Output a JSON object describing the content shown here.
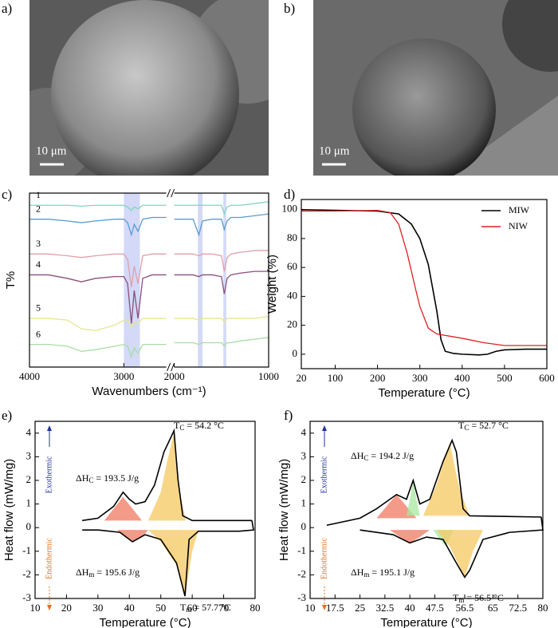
{
  "panels": {
    "a": "a)",
    "b": "b)",
    "c": "c)",
    "d": "d)",
    "e": "e)",
    "f": "f)",
    "scale_a": "10 μm",
    "scale_b": "10 μm"
  },
  "chart_data": [
    {
      "type": "line",
      "xlabel": "Wavenumbers (cm⁻¹)",
      "ylabel": "T%",
      "xlim": [
        4000,
        1000
      ],
      "xbreak": [
        2550,
        2000
      ],
      "xticks": [
        4000,
        3000,
        2000,
        1000
      ],
      "ylim": [
        0,
        100
      ],
      "highlights": [
        [
          3000,
          2830
        ],
        [
          1750,
          1700
        ],
        [
          1480,
          1450
        ]
      ],
      "highlight_color": "#c8d0f5",
      "x": [
        4000,
        3800,
        3600,
        3450,
        3300,
        3100,
        3000,
        2960,
        2920,
        2890,
        2850,
        2800,
        2700,
        2550,
        2000,
        1900,
        1800,
        1740,
        1700,
        1600,
        1500,
        1470,
        1440,
        1400,
        1300,
        1150,
        1000
      ],
      "series": [
        {
          "name": "1",
          "color": "#7fd6c0",
          "values": [
            93,
            93,
            93,
            92.5,
            93,
            93,
            93,
            92,
            90,
            92,
            91,
            93,
            93,
            93,
            93,
            93,
            93,
            93,
            93,
            93,
            93,
            88,
            92,
            93,
            93,
            94,
            95
          ]
        },
        {
          "name": "2",
          "color": "#5b9bd0",
          "values": [
            85,
            85,
            84,
            83,
            84,
            85,
            85,
            83,
            76,
            82,
            78,
            85,
            86,
            86,
            85,
            85,
            85,
            76,
            84,
            85,
            85,
            79,
            84,
            86,
            86,
            87,
            88
          ]
        },
        {
          "name": "3",
          "color": "#e0a0a8",
          "values": [
            65,
            65,
            64,
            63,
            64,
            65,
            65,
            62,
            46,
            58,
            48,
            64,
            65,
            65,
            65,
            65,
            65,
            64,
            65,
            65,
            64,
            55,
            63,
            65,
            66,
            67,
            67
          ]
        },
        {
          "name": "4",
          "color": "#8b4e7a",
          "values": [
            53,
            53,
            51,
            49,
            51,
            52,
            52,
            48,
            25,
            44,
            28,
            51,
            53,
            53,
            53,
            53,
            53,
            52,
            53,
            53,
            52,
            42,
            51,
            53,
            54,
            55,
            55
          ]
        },
        {
          "name": "5",
          "color": "#e6e690",
          "values": [
            28,
            28,
            27,
            22,
            21,
            24,
            27,
            27,
            23,
            26,
            25,
            28,
            28,
            28,
            28,
            28,
            28,
            27,
            28,
            28,
            28,
            26,
            28,
            28,
            28,
            28,
            29
          ]
        },
        {
          "name": "6",
          "color": "#a6dea0",
          "values": [
            13,
            13,
            12,
            9,
            10,
            12,
            13,
            12,
            6,
            11,
            8,
            13,
            13,
            13,
            14,
            14,
            14,
            13,
            14,
            14,
            14,
            12,
            14,
            14,
            15,
            16,
            17
          ]
        }
      ]
    },
    {
      "type": "line",
      "xlabel": "Temperature (°C)",
      "ylabel": "Weight (%)",
      "xlim": [
        20,
        600
      ],
      "xticks": [
        20,
        100,
        200,
        300,
        400,
        500,
        600
      ],
      "ylim": [
        -10,
        107
      ],
      "yticks": [
        0,
        20,
        40,
        60,
        80,
        100
      ],
      "legend": "upper right",
      "series": [
        {
          "name": "MIW",
          "color": "#000000",
          "x": [
            20,
            100,
            200,
            250,
            280,
            300,
            320,
            340,
            350,
            360,
            380,
            400,
            440,
            460,
            480,
            500,
            550,
            600
          ],
          "values": [
            100,
            99.5,
            99,
            97,
            90,
            80,
            62,
            30,
            10,
            2,
            0.5,
            0,
            -0.5,
            0,
            2,
            3,
            3.5,
            3.5
          ]
        },
        {
          "name": "NIW",
          "color": "#e02020",
          "x": [
            20,
            100,
            200,
            230,
            250,
            270,
            290,
            300,
            320,
            340,
            400,
            450,
            500,
            550,
            600
          ],
          "values": [
            99,
            99,
            99.5,
            98,
            90,
            70,
            45,
            33,
            18,
            14,
            11,
            8,
            6,
            6,
            6
          ]
        }
      ]
    },
    {
      "type": "line",
      "xlabel": "Temperature (°C)",
      "ylabel": "Heat flow (mW/mg)",
      "exo": "Exothermic",
      "endo": "Endothermic",
      "xlim": [
        10,
        80
      ],
      "xticks": [
        10,
        20,
        30,
        40,
        50,
        60,
        70,
        80
      ],
      "ylim": [
        -3,
        4.5
      ],
      "yticks": [
        -3,
        -2,
        -1,
        0,
        1,
        2,
        3,
        4
      ],
      "annotations": [
        {
          "text": "T",
          "sub": "C",
          "rest": " = 54.2 °C"
        },
        {
          "text": "ΔH",
          "sub": "C",
          "rest": " = 193.5 J/g"
        },
        {
          "text": "ΔH",
          "sub": "m",
          "rest": " = 195.6 J/g"
        },
        {
          "text": "T",
          "sub": "m",
          "rest": " = 57.7 °C"
        }
      ],
      "series": [
        {
          "color": "#f07860",
          "fill": true,
          "base": 0.3,
          "x": [
            32,
            35,
            38,
            41,
            44
          ],
          "values": [
            0.3,
            0.8,
            1.3,
            0.8,
            0.3
          ]
        },
        {
          "color": "#f5c860",
          "fill": true,
          "base": 0.3,
          "x": [
            46,
            50,
            52,
            54.2,
            56,
            58
          ],
          "values": [
            0.3,
            1.5,
            2.8,
            4.0,
            1.5,
            0.3
          ]
        },
        {
          "color": "#f07860",
          "fill": true,
          "base": -0.1,
          "x": [
            36,
            39,
            41,
            44,
            46
          ],
          "values": [
            -0.1,
            -0.4,
            -0.6,
            -0.4,
            -0.1
          ]
        },
        {
          "color": "#f5c860",
          "fill": true,
          "base": -0.1,
          "x": [
            46,
            50,
            55,
            57.7,
            60,
            62
          ],
          "values": [
            -0.1,
            -0.6,
            -1.6,
            -2.9,
            -1.0,
            -0.1
          ]
        },
        {
          "color": "#000000",
          "x": [
            25,
            30,
            35,
            38,
            40,
            42,
            45,
            48,
            51,
            54.2,
            55.5,
            57,
            60,
            70,
            79
          ],
          "values": [
            0.3,
            0.4,
            0.9,
            1.5,
            1.2,
            1.0,
            1.1,
            1.8,
            3.2,
            4.1,
            2.0,
            0.5,
            0.3,
            0.3,
            0.3
          ]
        },
        {
          "color": "#000000",
          "x": [
            79,
            79.5,
            75,
            62,
            59,
            57.7,
            55,
            50,
            45,
            41,
            37,
            30,
            25
          ],
          "values": [
            0.3,
            -0.1,
            -0.15,
            -0.15,
            -0.5,
            -2.9,
            -1.5,
            -0.5,
            -0.3,
            -0.6,
            -0.2,
            -0.1,
            -0.1
          ]
        }
      ]
    },
    {
      "type": "line",
      "xlabel": "Temperature (°C)",
      "ylabel": "Heat flow (mW/mg)",
      "exo": "Exothermic",
      "endo": "Endothermic",
      "xlim": [
        10,
        80
      ],
      "xticks": [
        10,
        17.5,
        25,
        32.5,
        40,
        47.5,
        56.5,
        65,
        72.5,
        80
      ],
      "ylim": [
        -3,
        4.5
      ],
      "yticks": [
        -3,
        -2,
        -1,
        0,
        1,
        2,
        3,
        4
      ],
      "annotations": [
        {
          "text": "T",
          "sub": "C",
          "rest": " = 52.7 °C"
        },
        {
          "text": "ΔH",
          "sub": "C",
          "rest": " = 194.2 J/g"
        },
        {
          "text": "ΔH",
          "sub": "m",
          "rest": " = 195.1 J/g"
        },
        {
          "text": "T",
          "sub": "m",
          "rest": " = 56.5 °C"
        }
      ],
      "series": [
        {
          "color": "#f07860",
          "fill": true,
          "base": 0.4,
          "x": [
            30,
            33,
            36,
            39,
            42
          ],
          "values": [
            0.4,
            0.9,
            1.4,
            0.9,
            0.4
          ]
        },
        {
          "color": "#a8e8a0",
          "fill": true,
          "base": 0.5,
          "x": [
            39,
            40,
            41,
            42,
            43
          ],
          "values": [
            0.5,
            1.2,
            2.0,
            1.2,
            0.5
          ]
        },
        {
          "color": "#f5c860",
          "fill": true,
          "base": 0.5,
          "x": [
            44,
            48,
            52,
            55,
            58
          ],
          "values": [
            0.5,
            1.8,
            3.6,
            1.6,
            0.5
          ]
        },
        {
          "color": "#f07860",
          "fill": true,
          "base": -0.1,
          "x": [
            34,
            37,
            40,
            43,
            46
          ],
          "values": [
            -0.1,
            -0.4,
            -0.65,
            -0.4,
            -0.1
          ]
        },
        {
          "color": "#a8e8a0",
          "fill": true,
          "base": -0.1,
          "x": [
            47,
            49,
            51,
            53
          ],
          "values": [
            -0.1,
            -0.5,
            -0.8,
            -0.1
          ]
        },
        {
          "color": "#f5c860",
          "fill": true,
          "base": -0.1,
          "x": [
            48,
            52,
            56.5,
            59,
            62
          ],
          "values": [
            -0.1,
            -0.8,
            -2.1,
            -1.0,
            -0.1
          ]
        },
        {
          "color": "#000000",
          "x": [
            15,
            25,
            30,
            36,
            39,
            41,
            43,
            46,
            50,
            52.7,
            54,
            56,
            58,
            78,
            79.5
          ],
          "values": [
            0.1,
            0.4,
            0.8,
            1.4,
            1.2,
            2.0,
            1.0,
            1.2,
            2.8,
            3.7,
            3.2,
            0.8,
            0.5,
            0.45,
            0.45
          ]
        },
        {
          "color": "#000000",
          "x": [
            79.5,
            80,
            70,
            62,
            58,
            56.5,
            54,
            50,
            45,
            40,
            35,
            25
          ],
          "values": [
            0.45,
            -0.1,
            -0.2,
            -0.5,
            -1.8,
            -2.1,
            -1.5,
            -0.5,
            -0.4,
            -0.65,
            -0.3,
            -0.1
          ]
        }
      ]
    }
  ]
}
